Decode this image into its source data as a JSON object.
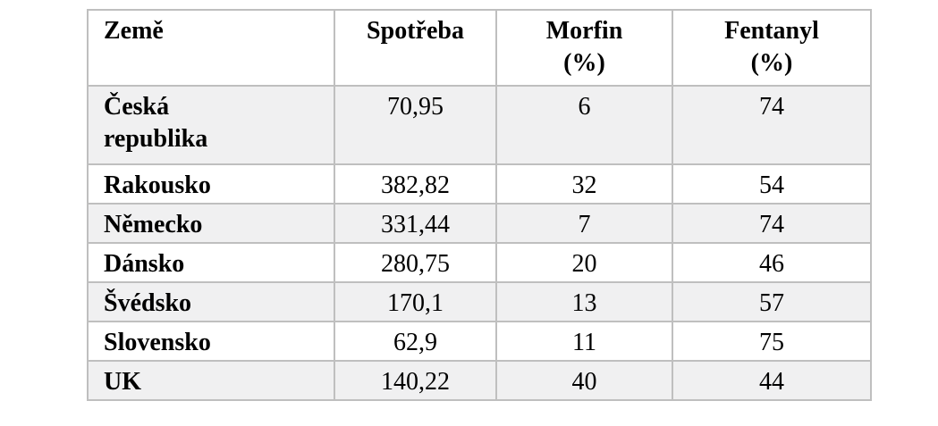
{
  "chart_data": {
    "type": "table",
    "columns": [
      "Země",
      "Spotřeba",
      "Morfin (%)",
      "Fentanyl (%)"
    ],
    "rows": [
      [
        "Česká republika",
        "70,95",
        6,
        74
      ],
      [
        "Rakousko",
        "382,82",
        32,
        54
      ],
      [
        "Německo",
        "331,44",
        7,
        74
      ],
      [
        "Dánsko",
        "280,75",
        20,
        46
      ],
      [
        "Švédsko",
        "170,1",
        13,
        57
      ],
      [
        "Slovensko",
        "62,9",
        11,
        75
      ],
      [
        "UK",
        "140,22",
        40,
        44
      ]
    ]
  },
  "table": {
    "headers": [
      {
        "line1": "Země",
        "line2": ""
      },
      {
        "line1": "Spotřeba",
        "line2": ""
      },
      {
        "line1": "Morfin",
        "line2": "(%)"
      },
      {
        "line1": "Fentanyl",
        "line2": "(%)"
      }
    ],
    "rows": [
      {
        "country": "Česká republika",
        "spotreba": "70,95",
        "morfin": "6",
        "fentanyl": "74"
      },
      {
        "country": "Rakousko",
        "spotreba": "382,82",
        "morfin": "32",
        "fentanyl": "54"
      },
      {
        "country": "Německo",
        "spotreba": "331,44",
        "morfin": "7",
        "fentanyl": "74"
      },
      {
        "country": "Dánsko",
        "spotreba": "280,75",
        "morfin": "20",
        "fentanyl": "46"
      },
      {
        "country": "Švédsko",
        "spotreba": "170,1",
        "morfin": "13",
        "fentanyl": "57"
      },
      {
        "country": "Slovensko",
        "spotreba": "62,9",
        "morfin": "11",
        "fentanyl": "75"
      },
      {
        "country": "UK",
        "spotreba": "140,22",
        "morfin": "40",
        "fentanyl": "44"
      }
    ]
  },
  "colors": {
    "row_bg": "#ffffff",
    "row_alt_bg": "#f0f0f1",
    "border": "#bfbfbf",
    "text": "#000000"
  }
}
